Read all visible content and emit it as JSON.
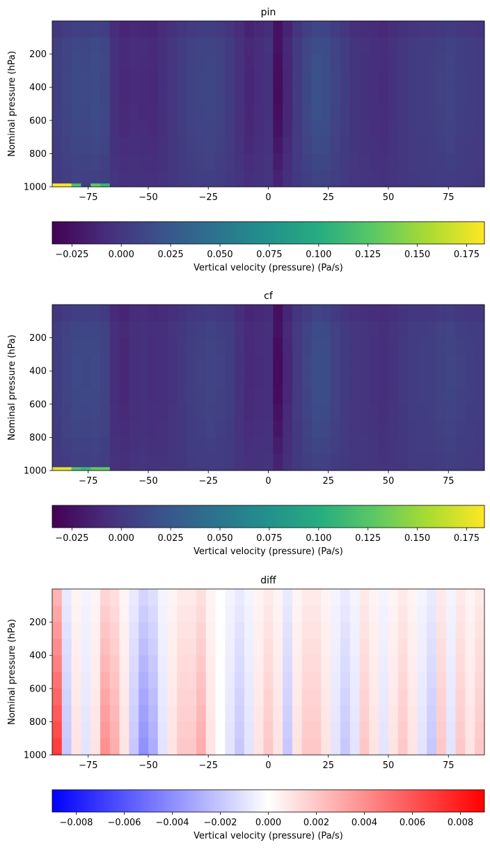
{
  "chart_data": [
    {
      "type": "heatmap",
      "title": "pin",
      "ylabel": "Nominal pressure (hPa)",
      "xlim": [
        -90,
        90
      ],
      "ylim": [
        0,
        1000
      ],
      "y_inverted": true,
      "xticks": [
        -75,
        -50,
        -25,
        0,
        25,
        50,
        75
      ],
      "yticks": [
        200,
        400,
        600,
        800,
        1000
      ],
      "colormap": "viridis",
      "colorbar": {
        "label": "Vertical velocity (pressure) (Pa/s)",
        "vmin": -0.035,
        "vmax": 0.184,
        "ticks": [
          "−0.025",
          "0.000",
          "0.025",
          "0.050",
          "0.075",
          "0.100",
          "0.125",
          "0.150",
          "0.175"
        ],
        "tick_values": [
          -0.025,
          0.0,
          0.025,
          0.05,
          0.075,
          0.1,
          0.125,
          0.15,
          0.175
        ]
      },
      "field": {
        "lat_centers": [
          -88,
          -84,
          -80,
          -76,
          -72,
          -68,
          -64,
          -60,
          -56,
          -52,
          -48,
          -44,
          -40,
          -36,
          -32,
          -28,
          -24,
          -20,
          -16,
          -12,
          -8,
          -4,
          0,
          4,
          8,
          12,
          16,
          20,
          24,
          28,
          32,
          36,
          40,
          44,
          48,
          52,
          56,
          60,
          64,
          68,
          72,
          76,
          80,
          84,
          88
        ],
        "plev_centers": [
          50,
          150,
          250,
          350,
          450,
          550,
          650,
          750,
          850,
          950,
          990
        ],
        "column_mean": [
          0.006,
          0.01,
          0.014,
          0.013,
          0.015,
          0.012,
          -0.005,
          -0.01,
          -0.008,
          -0.009,
          -0.01,
          -0.006,
          -0.001,
          0.004,
          0.008,
          0.01,
          0.011,
          0.008,
          0.003,
          -0.005,
          -0.012,
          -0.008,
          -0.004,
          -0.028,
          -0.012,
          0.003,
          0.012,
          0.019,
          0.017,
          0.01,
          0.004,
          -0.002,
          -0.004,
          -0.006,
          -0.008,
          -0.004,
          0.0,
          0.003,
          0.004,
          0.005,
          0.007,
          0.009,
          0.006,
          0.004,
          0.003
        ],
        "surface_hotspots": [
          {
            "lat": -86,
            "value": 0.184
          },
          {
            "lat": -82,
            "value": 0.12
          },
          {
            "lat": -72,
            "value": 0.13
          },
          {
            "lat": -69,
            "value": 0.11
          }
        ]
      }
    },
    {
      "type": "heatmap",
      "title": "cf",
      "ylabel": "Nominal pressure (hPa)",
      "xlim": [
        -90,
        90
      ],
      "ylim": [
        0,
        1000
      ],
      "y_inverted": true,
      "xticks": [
        -75,
        -50,
        -25,
        0,
        25,
        50,
        75
      ],
      "yticks": [
        200,
        400,
        600,
        800,
        1000
      ],
      "colormap": "viridis",
      "colorbar": {
        "label": "Vertical velocity (pressure) (Pa/s)",
        "vmin": -0.035,
        "vmax": 0.184,
        "ticks": [
          "−0.025",
          "0.000",
          "0.025",
          "0.050",
          "0.075",
          "0.100",
          "0.125",
          "0.150",
          "0.175"
        ],
        "tick_values": [
          -0.025,
          0.0,
          0.025,
          0.05,
          0.075,
          0.1,
          0.125,
          0.15,
          0.175
        ]
      },
      "field": {
        "lat_centers": [
          -88,
          -84,
          -80,
          -76,
          -72,
          -68,
          -64,
          -60,
          -56,
          -52,
          -48,
          -44,
          -40,
          -36,
          -32,
          -28,
          -24,
          -20,
          -16,
          -12,
          -8,
          -4,
          0,
          4,
          8,
          12,
          16,
          20,
          24,
          28,
          32,
          36,
          40,
          44,
          48,
          52,
          56,
          60,
          64,
          68,
          72,
          76,
          80,
          84,
          88
        ],
        "plev_centers": [
          50,
          150,
          250,
          350,
          450,
          550,
          650,
          750,
          850,
          950,
          990
        ],
        "column_mean": [
          0.004,
          0.009,
          0.013,
          0.012,
          0.013,
          0.009,
          -0.007,
          -0.011,
          -0.006,
          -0.005,
          -0.007,
          -0.006,
          -0.003,
          0.001,
          0.005,
          0.007,
          0.009,
          0.007,
          0.004,
          -0.004,
          -0.01,
          -0.008,
          -0.006,
          -0.029,
          -0.011,
          0.002,
          0.01,
          0.017,
          0.015,
          0.008,
          0.003,
          -0.001,
          -0.002,
          -0.004,
          -0.006,
          -0.003,
          0.001,
          0.004,
          0.005,
          0.006,
          0.008,
          0.01,
          0.007,
          0.005,
          0.004
        ],
        "surface_hotspots": [
          {
            "lat": -86,
            "value": 0.175
          },
          {
            "lat": -82,
            "value": 0.12
          },
          {
            "lat": -76,
            "value": 0.11
          },
          {
            "lat": -70,
            "value": 0.13
          }
        ]
      }
    },
    {
      "type": "heatmap",
      "title": "diff",
      "ylabel": "Nominal pressure (hPa)",
      "xlim": [
        -90,
        90
      ],
      "ylim": [
        0,
        1000
      ],
      "y_inverted": true,
      "xticks": [
        -75,
        -50,
        -25,
        0,
        25,
        50,
        75
      ],
      "yticks": [
        200,
        400,
        600,
        800,
        1000
      ],
      "colormap": "bwr",
      "colorbar": {
        "label": "Vertical velocity (pressure) (Pa/s)",
        "vmin": -0.009,
        "vmax": 0.009,
        "ticks": [
          "−0.008",
          "−0.006",
          "−0.004",
          "−0.002",
          "0.000",
          "0.002",
          "0.004",
          "0.006",
          "0.008"
        ],
        "tick_values": [
          -0.008,
          -0.006,
          -0.004,
          -0.002,
          0.0,
          0.002,
          0.004,
          0.006,
          0.008
        ]
      },
      "field": {
        "lat_centers": [
          -88,
          -84,
          -80,
          -76,
          -72,
          -68,
          -64,
          -60,
          -56,
          -52,
          -48,
          -44,
          -40,
          -36,
          -32,
          -28,
          -24,
          -20,
          -16,
          -12,
          -8,
          -4,
          0,
          4,
          8,
          12,
          16,
          20,
          24,
          28,
          32,
          36,
          40,
          44,
          48,
          52,
          56,
          60,
          64,
          68,
          72,
          76,
          80,
          84,
          88
        ],
        "plev_centers": [
          50,
          150,
          250,
          350,
          450,
          550,
          650,
          750,
          850,
          950,
          990
        ],
        "column_mean": [
          0.007,
          -0.002,
          0.001,
          -0.001,
          0.001,
          0.004,
          0.003,
          0.001,
          -0.002,
          -0.004,
          -0.003,
          -0.001,
          0.001,
          0.002,
          0.002,
          0.003,
          0.001,
          0.0,
          -0.001,
          -0.002,
          -0.001,
          0.001,
          0.002,
          0.001,
          -0.002,
          0.001,
          0.002,
          0.002,
          0.001,
          -0.001,
          -0.002,
          -0.001,
          0.002,
          0.001,
          -0.001,
          0.001,
          0.002,
          0.001,
          -0.001,
          -0.002,
          0.002,
          -0.001,
          0.002,
          0.001,
          0.002
        ]
      }
    }
  ]
}
